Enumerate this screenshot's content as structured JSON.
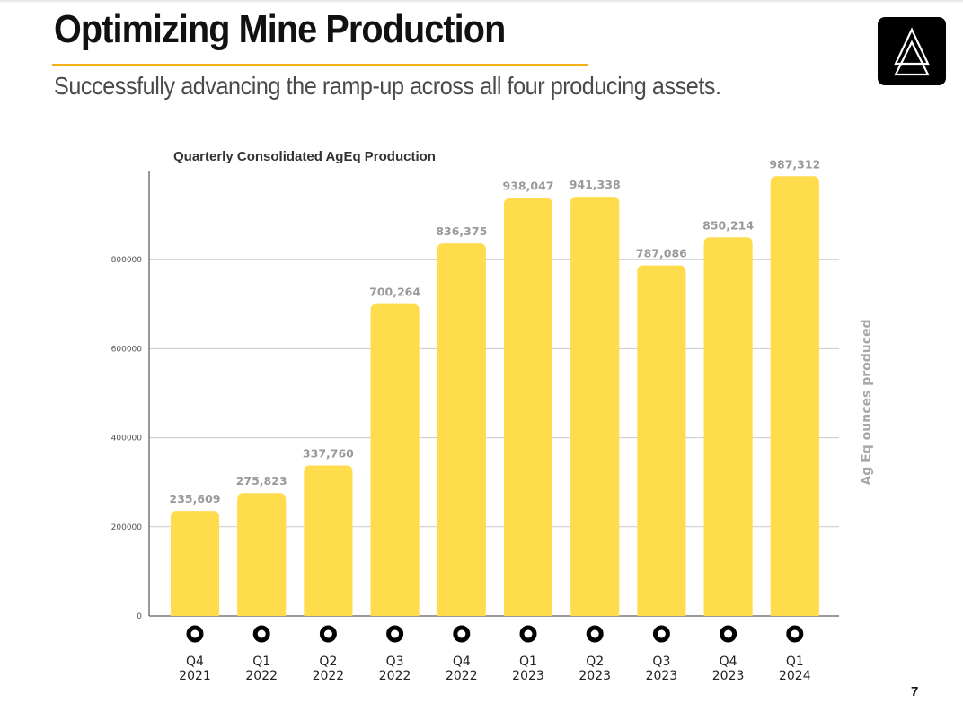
{
  "slide": {
    "title": "Optimizing Mine Production",
    "subtitle": "Successfully advancing the ramp-up across all four producing assets.",
    "page_number": "7",
    "accent_color": "#f5b11b",
    "logo_icon": "triangle-logo-icon"
  },
  "chart_data": {
    "type": "bar",
    "title": "Quarterly Consolidated AgEq Production",
    "xlabel": "",
    "ylabel": "Ag Eq ounces produced",
    "categories": [
      [
        "Q4",
        "2021"
      ],
      [
        "Q1",
        "2022"
      ],
      [
        "Q2",
        "2022"
      ],
      [
        "Q3",
        "2022"
      ],
      [
        "Q4",
        "2022"
      ],
      [
        "Q1",
        "2023"
      ],
      [
        "Q2",
        "2023"
      ],
      [
        "Q3",
        "2023"
      ],
      [
        "Q4",
        "2023"
      ],
      [
        "Q1",
        "2024"
      ]
    ],
    "values": [
      235609,
      275823,
      337760,
      700264,
      836375,
      938047,
      941338,
      787086,
      850214,
      987312
    ],
    "data_labels": [
      "235,609",
      "275,823",
      "337,760",
      "700,264",
      "836,375",
      "938,047",
      "941,338",
      "787,086",
      "850,214",
      "987,312"
    ],
    "y_ticks": [
      0,
      200000,
      400000,
      600000,
      800000
    ],
    "ylim": [
      0,
      1000000
    ],
    "grid": true,
    "bar_color": "#fedc4c",
    "category_marker": "ring-marker-icon",
    "ylabel_position": "right"
  }
}
